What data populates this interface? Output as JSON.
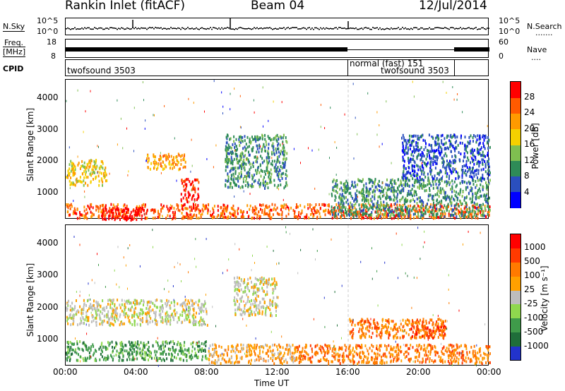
{
  "header": {
    "station": "Rankin Inlet (fitACF)",
    "beam": "Beam 04",
    "date": "12/Jul/2014"
  },
  "noise_panel": {
    "left_label": "N.Sky",
    "left_ticks": [
      "10^5",
      "10^0"
    ],
    "right_label": "N.Search",
    "right_ticks": [
      "10^5",
      "10^0"
    ],
    "right_legend": "......."
  },
  "freq_panel": {
    "left_label_line1": "Freq.",
    "left_label_line2": "[MHz]",
    "left_ticks": [
      "18",
      "8"
    ],
    "right_label": "Nave",
    "right_ticks": [
      "60",
      "0"
    ],
    "right_legend": "...."
  },
  "cpid_panel": {
    "label": "CPID",
    "segments": [
      "twofsound 3503",
      "normal (fast) 151",
      "twofsound 3503"
    ]
  },
  "time_axis": {
    "label": "Time UT",
    "ticks": [
      "00:00",
      "04:00",
      "08:00",
      "12:00",
      "16:00",
      "20:00",
      "00:00"
    ]
  },
  "colors": {
    "power": [
      "#0000ff",
      "#2a4fbe",
      "#2e8b57",
      "#7fbf50",
      "#f5d000",
      "#ff9a00",
      "#ff5a00",
      "#ff0000"
    ],
    "velocity": [
      "#2233cc",
      "#1f6e3a",
      "#3f9b4a",
      "#8fd84e",
      "#bdbdbd",
      "#ffa000",
      "#ff7a00",
      "#ff3a00",
      "#ff0000"
    ],
    "ground_scatter": "#bdbdbd"
  },
  "chart_data": [
    {
      "type": "heatmap",
      "title": "Power",
      "ylabel": "Slant Range [km]",
      "xlabel": "",
      "ylim": [
        180,
        4600
      ],
      "yticks": [
        "1000",
        "2000",
        "3000",
        "4000"
      ],
      "xlim_hours": [
        0,
        24
      ],
      "colorbar": {
        "label": "Power [dB]",
        "ticks": [
          "28",
          "24",
          "20",
          "16",
          "12",
          "8",
          "4"
        ]
      },
      "regions": [
        {
          "t0": 0.0,
          "t1": 24.0,
          "r0": 250,
          "r1": 700,
          "level": 6
        },
        {
          "t0": 2.0,
          "t1": 4.6,
          "r0": 200,
          "r1": 600,
          "level": 8
        },
        {
          "t0": 0.0,
          "t1": 2.3,
          "r0": 1300,
          "r1": 2100,
          "level": 4
        },
        {
          "t0": 4.5,
          "t1": 6.8,
          "r0": 1800,
          "r1": 2300,
          "level": 5
        },
        {
          "t0": 6.5,
          "t1": 7.5,
          "r0": 500,
          "r1": 1500,
          "level": 7
        },
        {
          "t0": 9.0,
          "t1": 12.5,
          "r0": 1200,
          "r1": 2900,
          "level": 2
        },
        {
          "t0": 15.0,
          "t1": 24.0,
          "r0": 300,
          "r1": 1500,
          "level": 2
        },
        {
          "t0": 19.0,
          "t1": 24.0,
          "r0": 1500,
          "r1": 2900,
          "level": 1
        }
      ]
    },
    {
      "type": "heatmap",
      "title": "Velocity",
      "ylabel": "Slant Range [km]",
      "xlabel": "Time UT",
      "ylim": [
        180,
        4600
      ],
      "yticks": [
        "1000",
        "2000",
        "3000",
        "4000"
      ],
      "xlim_hours": [
        0,
        24
      ],
      "colorbar": {
        "label": "Velocity [m s⁻¹]",
        "ticks": [
          "1000",
          "500",
          "100",
          "25",
          "-25",
          "-100",
          "-500",
          "-1000"
        ]
      },
      "regions": [
        {
          "t0": 0.0,
          "t1": 8.0,
          "r0": 1500,
          "r1": 2300,
          "level": 4
        },
        {
          "t0": 0.0,
          "t1": 8.0,
          "r0": 400,
          "r1": 1000,
          "level": 2
        },
        {
          "t0": 8.0,
          "t1": 13.0,
          "r0": 300,
          "r1": 900,
          "level": 5
        },
        {
          "t0": 13.0,
          "t1": 24.0,
          "r0": 300,
          "r1": 900,
          "level": 6
        },
        {
          "t0": 16.0,
          "t1": 21.5,
          "r0": 1100,
          "r1": 1700,
          "level": 6
        },
        {
          "t0": 19.5,
          "t1": 21.5,
          "r0": 1100,
          "r1": 1500,
          "level": 7
        },
        {
          "t0": 9.5,
          "t1": 12.0,
          "r0": 1800,
          "r1": 3000,
          "level": 4
        }
      ]
    }
  ]
}
